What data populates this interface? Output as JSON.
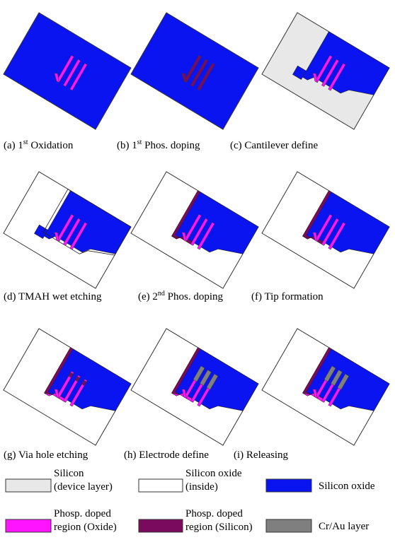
{
  "captions": [
    {
      "pre": "(a) 1",
      "sup": "st",
      "post": " Oxidation"
    },
    {
      "pre": "(b) 1",
      "sup": "st",
      "post": " Phos. doping"
    },
    {
      "pre": "(c) Cantilever define"
    },
    {
      "pre": "(d) TMAH wet etching"
    },
    {
      "pre": "(e) 2",
      "sup": "nd",
      "post": " Phos. doping"
    },
    {
      "pre": "(f) Tip formation"
    },
    {
      "pre": "(g) Via hole etching"
    },
    {
      "pre": "(h) Electrode define"
    },
    {
      "pre": "(i) Releasing"
    }
  ],
  "legend": [
    {
      "lines": [
        "Silicon",
        "(device layer)"
      ],
      "color": "#e8e8e8"
    },
    {
      "lines": [
        "Silicon oxide",
        "(inside)"
      ],
      "color": "#ffffff"
    },
    {
      "lines": [
        "Silicon oxide"
      ],
      "color": "#0a14f0"
    },
    {
      "lines": [
        "Phosp. doped",
        "region (Oxide)"
      ],
      "color": "#ff14ff"
    },
    {
      "lines": [
        "Phosp. doped",
        "region (Silicon)"
      ],
      "color": "#7a0a5e"
    },
    {
      "lines": [
        "Cr/Au layer"
      ],
      "color": "#7f7f7f"
    }
  ]
}
